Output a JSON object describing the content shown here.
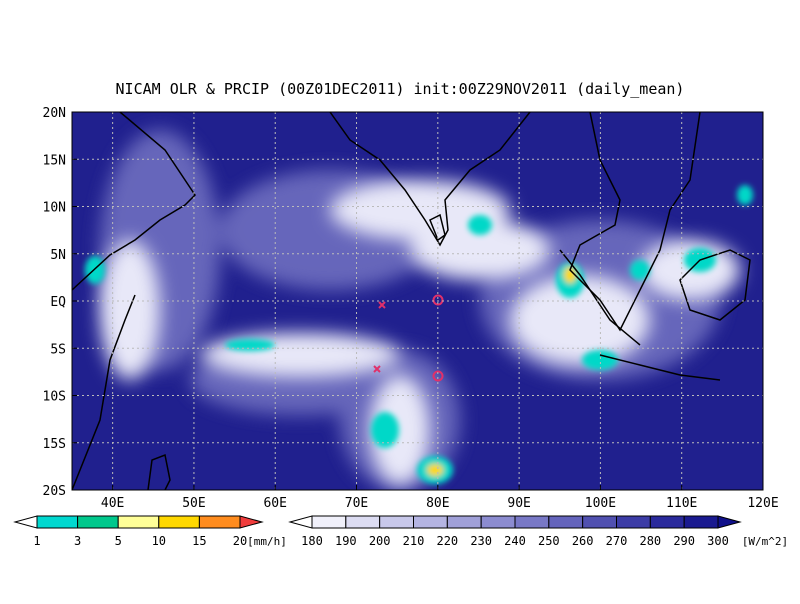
{
  "title": "NICAM OLR & PRCIP (00Z01DEC2011) init:00Z29NOV2011 (daily_mean)",
  "map": {
    "lat_labels": [
      "20N",
      "15N",
      "10N",
      "5N",
      "EQ",
      "5S",
      "10S",
      "15S",
      "20S"
    ],
    "lon_labels": [
      "40E",
      "50E",
      "60E",
      "70E",
      "80E",
      "90E",
      "100E",
      "110E",
      "120E"
    ]
  },
  "precip_legend": {
    "labels": [
      1,
      3,
      5,
      10,
      15,
      20
    ],
    "unit": "[mm/h]"
  },
  "olr_legend": {
    "labels": [
      180,
      190,
      200,
      210,
      220,
      230,
      240,
      250,
      260,
      270,
      280,
      290,
      300
    ],
    "unit": "[W/m^2]"
  }
}
